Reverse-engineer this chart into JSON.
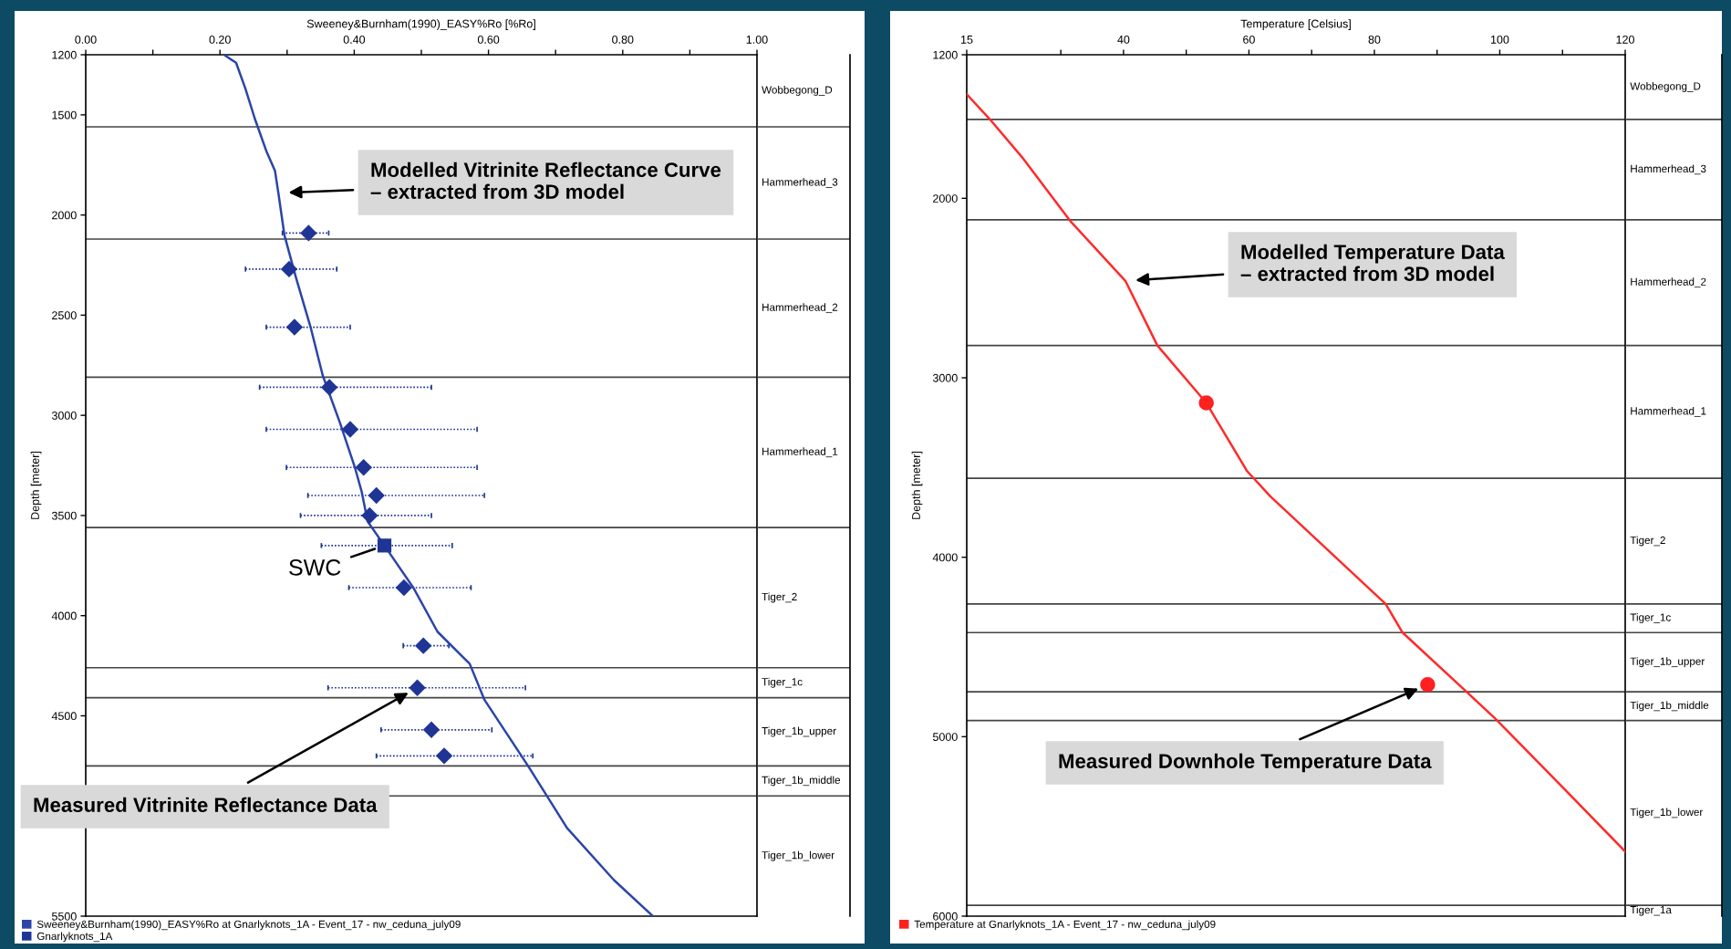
{
  "chart_data": [
    {
      "type": "line",
      "xlabel": "Sweeney&Burnham(1990)_EASY%Ro [%Ro]",
      "ylabel": "Depth [meter]",
      "xlim": [
        0,
        1
      ],
      "xticks": [
        {
          "value": 0,
          "label": "0.00"
        },
        {
          "value": 0.1,
          "label": null
        },
        {
          "value": 0.2,
          "label": "0.20"
        },
        {
          "value": 0.3,
          "label": null
        },
        {
          "value": 0.4,
          "label": "0.40"
        },
        {
          "value": 0.5,
          "label": null
        },
        {
          "value": 0.6,
          "label": "0.60"
        },
        {
          "value": 0.7,
          "label": null
        },
        {
          "value": 0.8,
          "label": "0.80"
        },
        {
          "value": 0.9,
          "label": null
        },
        {
          "value": 1,
          "label": "1.00"
        }
      ],
      "ylim": [
        5500,
        1200
      ],
      "yticks": [
        1200,
        1500,
        2000,
        2500,
        3000,
        3500,
        4000,
        4500,
        {
          "value": 5000,
          "label": null
        },
        5500
      ],
      "legend": "bottom",
      "series": [
        {
          "name": "Sweeney&Burnham(1990)_EASY%Ro at Gnarlyknots_1A - Event_17 - nw_ceduna_july09",
          "marker": "none",
          "color": "#2b45a8",
          "x": [
            0.206,
            0.224,
            0.238,
            0.252,
            0.269,
            0.282,
            0.287,
            0.296,
            0.313,
            0.335,
            0.353,
            0.379,
            0.401,
            0.411,
            0.42,
            0.445,
            0.488,
            0.524,
            0.572,
            0.594,
            0.659,
            0.717,
            0.787,
            0.845
          ],
          "values": [
            1200,
            1240,
            1370,
            1520,
            1680,
            1780,
            1890,
            2100,
            2310,
            2560,
            2800,
            3040,
            3260,
            3380,
            3530,
            3650,
            3860,
            4080,
            4240,
            4420,
            4750,
            5060,
            5320,
            5500
          ]
        },
        {
          "name": "Gnarlyknots_1A",
          "type": "scatter",
          "marker": "diamond",
          "color": "#1f3595",
          "x": [
            0.332,
            0.303,
            0.311,
            0.363,
            0.394,
            0.414,
            0.433,
            0.423,
            0.474,
            0.503,
            0.494,
            0.515,
            0.534
          ],
          "values": [
            2090,
            2270,
            2560,
            2860,
            3070,
            3260,
            3400,
            3500,
            3860,
            4150,
            4360,
            4570,
            4700
          ],
          "xerrors": [
            [
              0.293,
              0.362
            ],
            [
              0.238,
              0.374
            ],
            [
              0.269,
              0.394
            ],
            [
              0.259,
              0.515
            ],
            [
              0.269,
              0.583
            ],
            [
              0.299,
              0.583
            ],
            [
              0.331,
              0.594
            ],
            [
              0.32,
              0.515
            ],
            [
              0.392,
              0.574
            ],
            [
              0.473,
              0.541
            ],
            [
              0.361,
              0.655
            ],
            [
              0.44,
              0.605
            ],
            [
              0.433,
              0.666
            ]
          ]
        },
        {
          "type": "scatter",
          "marker": "square",
          "color": "#1f3595",
          "x": [
            0.445
          ],
          "values": [
            3650
          ],
          "xerrors": [
            [
              0.351,
              0.546
            ]
          ]
        }
      ],
      "ref_lines": [
        {
          "axis": "y",
          "value": 1560
        },
        {
          "axis": "y",
          "value": 2120
        },
        {
          "axis": "y",
          "value": 2810
        },
        {
          "axis": "y",
          "value": 3560
        },
        {
          "axis": "y",
          "value": 4260
        },
        {
          "axis": "y",
          "value": 4410
        },
        {
          "axis": "y",
          "value": 4750
        },
        {
          "axis": "y",
          "value": 4900
        }
      ],
      "annotations": [
        {
          "text": "Modelled Vitrinite Reflectance Curve\n– extracted from 3D model",
          "x": 0.287,
          "y": 1890
        },
        {
          "text": "SWC",
          "x": 0.445,
          "y": 3650
        },
        {
          "text": "Measured Vitrinite Reflectance Data",
          "x": 0.494,
          "y": 4360
        },
        "Wobbegong_D",
        "Hammerhead_3",
        "Hammerhead_2",
        "Hammerhead_1",
        "Tiger_2",
        "Tiger_1c",
        "Tiger_1b_upper",
        "Tiger_1b_middle",
        "Tiger_1b_lower"
      ]
    },
    {
      "type": "line",
      "xlabel": "Temperature [Celsius]",
      "ylabel": "Depth [meter]",
      "xlim": [
        15,
        120
      ],
      "xticks": [
        15,
        {
          "value": 30,
          "label": null
        },
        40,
        {
          "value": 50,
          "label": null
        },
        60,
        {
          "value": 70,
          "label": null
        },
        80,
        {
          "value": 90,
          "label": null
        },
        100,
        {
          "value": 110,
          "label": null
        },
        120
      ],
      "ylim": [
        6000,
        1200
      ],
      "yticks": [
        1200,
        2000,
        3000,
        4000,
        5000,
        6000
      ],
      "legend": "bottom",
      "series": [
        {
          "marker": "none",
          "color": "#ff2a2a",
          "x": [
            15,
            18.7,
            23.8,
            31.6,
            40.3,
            45.4,
            53.2,
            59.7,
            63.4,
            81.8,
            84.5,
            94.7,
            99.3,
            109.4,
            120
          ],
          "values": [
            1420,
            1560,
            1770,
            2130,
            2460,
            2820,
            3140,
            3520,
            3660,
            4260,
            4420,
            4750,
            4900,
            5260,
            5640
          ]
        },
        {
          "name": "Temperature at Gnarlyknots_1A - Event_17 - nw_ceduna_july09",
          "type": "scatter",
          "marker": "circle",
          "color": "#ff2020",
          "x": [
            53.2,
            88.5
          ],
          "values": [
            3140,
            4710
          ]
        }
      ],
      "ref_lines": [
        {
          "axis": "y",
          "value": 1560
        },
        {
          "axis": "y",
          "value": 2120
        },
        {
          "axis": "y",
          "value": 2820
        },
        {
          "axis": "y",
          "value": 3560
        },
        {
          "axis": "y",
          "value": 4260
        },
        {
          "axis": "y",
          "value": 4420
        },
        {
          "axis": "y",
          "value": 4750
        },
        {
          "axis": "y",
          "value": 4910
        },
        {
          "axis": "y",
          "value": 5940
        }
      ],
      "annotations": [
        {
          "text": "Modelled Temperature Data\n– extracted from 3D model",
          "x": 40.3,
          "y": 2460
        },
        {
          "text": "Measured Downhole Temperature Data",
          "x": 88.5,
          "y": 4710
        },
        "Wobbegong_D",
        "Hammerhead_3",
        "Hammerhead_2",
        "Hammerhead_1",
        "Tiger_2",
        "Tiger_1c",
        "Tiger_1b_upper",
        "Tiger_1b_middle",
        "Tiger_1b_lower",
        "Tiger_1a"
      ]
    }
  ]
}
